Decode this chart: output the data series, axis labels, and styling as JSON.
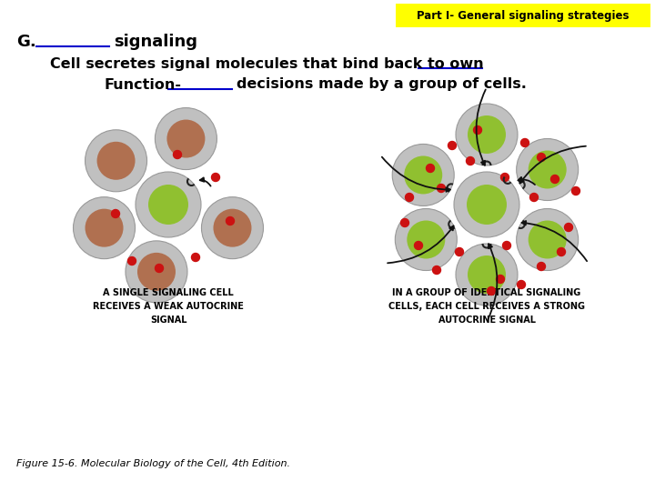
{
  "bg_color": "#ffffff",
  "header_bg": "#ffff00",
  "header_text": "Part I- General signaling strategies",
  "header_color": "#000000",
  "caption_left_1": "A SINGLE SIGNALING CELL",
  "caption_left_2": "RECEIVES A WEAK AUTOCRINE",
  "caption_left_3": "SIGNAL",
  "caption_right_1": "IN A GROUP OF IDENTICAL SIGNALING",
  "caption_right_2": "CELLS, EACH CELL RECEIVES A STRONG",
  "caption_right_3": "AUTOCRINE SIGNAL",
  "figure_caption": "Figure 15-6. Molecular Biology of the Cell, 4th Edition.",
  "cell_outer_color": "#c0c0c0",
  "cell_outer_edge": "#999999",
  "cell_inner_brown": "#b07050",
  "cell_inner_green": "#90c030",
  "dot_color": "#cc1111",
  "receptor_color": "#222222",
  "arrow_color": "#111111"
}
